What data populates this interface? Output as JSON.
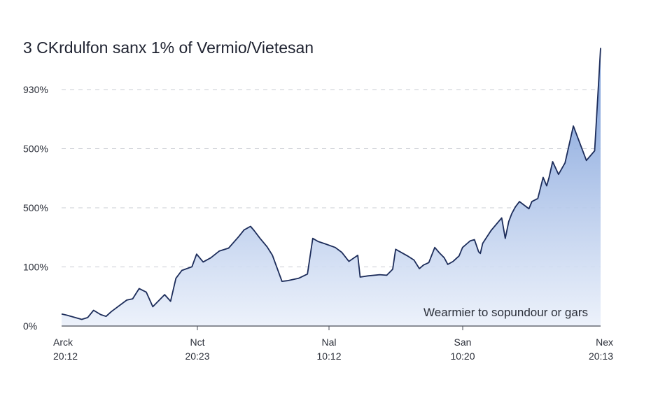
{
  "chart_data": {
    "type": "area",
    "title": "3 CKrdulfon sanx 1% of Vermio/Vietesan",
    "annotation": "Wearmier to sopundour or gars",
    "y_tick_labels": [
      "0%",
      "100%",
      "500%",
      "500%",
      "930%"
    ],
    "x_tick_labels": [
      {
        "top": "Arck",
        "bottom": "20:12"
      },
      {
        "top": "Nct",
        "bottom": "20:23"
      },
      {
        "top": "Nal",
        "bottom": "10:12"
      },
      {
        "top": "San",
        "bottom": "10:20"
      },
      {
        "top": "Nex",
        "bottom": "20:13"
      }
    ],
    "ylim": [
      0,
      4.7
    ],
    "grid": true,
    "colors": {
      "line": "#1c2c5a",
      "fill_top": "#6f95d6",
      "fill_bottom": "#e9effa"
    },
    "series": [
      {
        "x": [
          0,
          0.09,
          0.23,
          0.34,
          0.44,
          0.54,
          0.66,
          0.75,
          0.84,
          1.1,
          1.2,
          1.31,
          1.43,
          1.54,
          1.74,
          1.84,
          1.93,
          2.03,
          2.2,
          2.28,
          2.39,
          2.52,
          2.66,
          2.82,
          2.99,
          3.08,
          3.19,
          3.25,
          3.35,
          3.47,
          3.56,
          3.72,
          3.81,
          4.0,
          4.15,
          4.24,
          4.33,
          4.45,
          4.62,
          4.73,
          4.85,
          5.0,
          5.04,
          5.17,
          5.37,
          5.49,
          5.59,
          5.64,
          5.84,
          5.95,
          6.04,
          6.11,
          6.2,
          6.3,
          6.38,
          6.46,
          6.52,
          6.61,
          6.71,
          6.77,
          6.84,
          6.9,
          6.97,
          7.04,
          7.07,
          7.11,
          7.25,
          7.43,
          7.49,
          7.55,
          7.6,
          7.66,
          7.73,
          7.89,
          7.94,
          8.04,
          8.13,
          8.19,
          8.23,
          8.29,
          8.39,
          8.5,
          8.64,
          8.86,
          9.0,
          9.1
        ],
        "y": [
          0.2,
          0.18,
          0.14,
          0.11,
          0.14,
          0.26,
          0.19,
          0.16,
          0.24,
          0.43,
          0.45,
          0.62,
          0.56,
          0.32,
          0.52,
          0.41,
          0.79,
          0.92,
          0.98,
          1.19,
          1.06,
          1.13,
          1.24,
          1.29,
          1.48,
          1.59,
          1.65,
          1.58,
          1.45,
          1.31,
          1.17,
          0.74,
          0.75,
          0.79,
          0.86,
          1.45,
          1.4,
          1.36,
          1.3,
          1.22,
          1.07,
          1.17,
          0.81,
          0.83,
          0.85,
          0.84,
          0.94,
          1.27,
          1.16,
          1.09,
          0.95,
          1.01,
          1.05,
          1.3,
          1.21,
          1.13,
          1.02,
          1.07,
          1.16,
          1.3,
          1.36,
          1.41,
          1.43,
          1.23,
          1.2,
          1.37,
          1.58,
          1.79,
          1.45,
          1.73,
          1.86,
          1.97,
          2.06,
          1.94,
          2.06,
          2.11,
          2.46,
          2.32,
          2.46,
          2.72,
          2.51,
          2.7,
          3.31,
          2.74,
          2.9,
          4.6
        ]
      }
    ]
  }
}
